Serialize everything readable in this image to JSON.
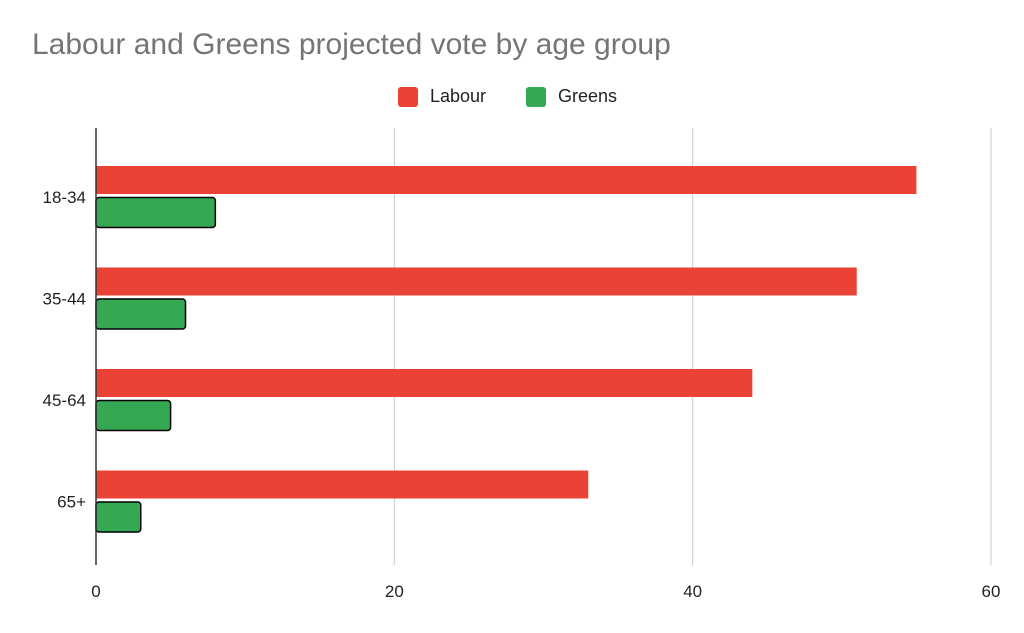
{
  "chart_data": {
    "type": "bar",
    "orientation": "horizontal",
    "title": "Labour and Greens projected vote by age group",
    "categories": [
      "18-34",
      "35-44",
      "45-64",
      "65+"
    ],
    "series": [
      {
        "name": "Labour",
        "color": "#ea4335",
        "values": [
          55,
          51,
          44,
          33
        ]
      },
      {
        "name": "Greens",
        "color": "#34a853",
        "values": [
          8,
          6,
          5,
          3
        ]
      }
    ],
    "xlim": [
      0,
      60
    ],
    "xticks": [
      0,
      20,
      40,
      60
    ],
    "xlabel": "",
    "ylabel": "",
    "grid": true,
    "legend": "top-center"
  }
}
